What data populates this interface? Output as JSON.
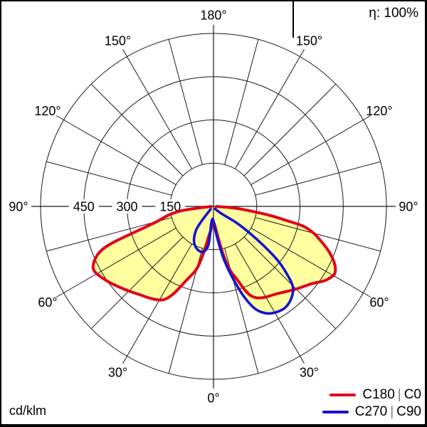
{
  "header": {
    "efficiency_text": "η: 100%",
    "unit_text": "cd/klm"
  },
  "legend": {
    "separator": "|",
    "entries": [
      {
        "plane_a": "C180",
        "plane_b": "C0",
        "color": "#e2001a"
      },
      {
        "plane_a": "C270",
        "plane_b": "C90",
        "color": "#1414cd"
      }
    ]
  },
  "colors": {
    "curve_c0_c180": "#e2001a",
    "curve_c90_c270": "#1414cd",
    "curve_fill": "#ffffa0",
    "grid": "#1a1a1a",
    "background": "#ffffff",
    "frame": "#000000",
    "legend_separator": "#7d7d7d"
  },
  "chart_data": {
    "type": "polar",
    "subtype": "luminous-intensity-distribution",
    "unit": "cd/klm",
    "efficiency": "100%",
    "orientation": "0 deg at bottom, 180 deg at top",
    "rmax": 600,
    "ring_values": [
      150,
      300,
      450,
      600
    ],
    "ring_axis_labels": [
      "150",
      "300",
      "450"
    ],
    "angle_grid_step_deg": 15,
    "angle_labels": [
      {
        "deg": 180,
        "text": "180°"
      },
      {
        "deg": 150,
        "text": "150°"
      },
      {
        "deg": -150,
        "text": "150°"
      },
      {
        "deg": 120,
        "text": "120°"
      },
      {
        "deg": -120,
        "text": "120°"
      },
      {
        "deg": 90,
        "text": "90°"
      },
      {
        "deg": -90,
        "text": "90°"
      },
      {
        "deg": 60,
        "text": "60°"
      },
      {
        "deg": -60,
        "text": "60°"
      },
      {
        "deg": 30,
        "text": "30°"
      },
      {
        "deg": -30,
        "text": "30°"
      },
      {
        "deg": 0,
        "text": "0°"
      }
    ],
    "series": [
      {
        "name": "C180 | C0",
        "color": "#e2001a",
        "fill": "#ffffa0",
        "points": [
          [
            -88,
            8
          ],
          [
            -84,
            85
          ],
          [
            -81,
            140
          ],
          [
            -78,
            172
          ],
          [
            -75,
            200
          ],
          [
            -72,
            285
          ],
          [
            -70,
            390
          ],
          [
            -68,
            432
          ],
          [
            -65,
            460
          ],
          [
            -62,
            474
          ],
          [
            -58,
            462
          ],
          [
            -54,
            448
          ],
          [
            -50,
            433
          ],
          [
            -45,
            416
          ],
          [
            -40,
            399
          ],
          [
            -35,
            389
          ],
          [
            -30,
            376
          ],
          [
            -27,
            362
          ],
          [
            -24,
            328
          ],
          [
            -21,
            283
          ],
          [
            -18,
            252
          ],
          [
            -15,
            228
          ],
          [
            -13,
            190
          ],
          [
            -11,
            140
          ],
          [
            -9,
            105
          ],
          [
            -7,
            88
          ],
          [
            -4,
            62
          ],
          [
            0,
            52
          ],
          [
            4,
            66
          ],
          [
            7,
            92
          ],
          [
            9,
            120
          ],
          [
            11,
            165
          ],
          [
            13,
            205
          ],
          [
            15,
            237
          ],
          [
            18,
            267
          ],
          [
            21,
            322
          ],
          [
            24,
            347
          ],
          [
            27,
            357
          ],
          [
            30,
            364
          ],
          [
            35,
            372
          ],
          [
            40,
            387
          ],
          [
            44,
            402
          ],
          [
            48,
            417
          ],
          [
            52,
            434
          ],
          [
            56,
            464
          ],
          [
            59,
            477
          ],
          [
            61,
            483
          ],
          [
            64,
            471
          ],
          [
            67,
            447
          ],
          [
            70,
            417
          ],
          [
            73,
            382
          ],
          [
            75,
            362
          ],
          [
            77,
            332
          ],
          [
            78,
            310
          ],
          [
            79,
            258
          ],
          [
            81,
            202
          ],
          [
            83,
            133
          ],
          [
            86,
            77
          ],
          [
            89,
            10
          ]
        ]
      },
      {
        "name": "C270 | C90",
        "color": "#1414cd",
        "fill": "#ffffa0",
        "points": [
          [
            -45,
            14
          ],
          [
            -40,
            85
          ],
          [
            -33,
            125
          ],
          [
            -27,
            148
          ],
          [
            -20,
            162
          ],
          [
            -13,
            165
          ],
          [
            -9,
            151
          ],
          [
            -7,
            130
          ],
          [
            -7,
            95
          ],
          [
            -8,
            60
          ],
          [
            -5,
            40
          ],
          [
            0,
            50
          ],
          [
            3,
            70
          ],
          [
            6,
            100
          ],
          [
            8,
            128
          ],
          [
            10,
            168
          ],
          [
            12,
            205
          ],
          [
            14,
            240
          ],
          [
            16,
            278
          ],
          [
            18,
            320
          ],
          [
            20,
            355
          ],
          [
            22,
            385
          ],
          [
            25,
            408
          ],
          [
            28,
            422
          ],
          [
            32,
            430
          ],
          [
            36,
            432
          ],
          [
            41,
            417
          ],
          [
            45,
            393
          ],
          [
            47,
            355
          ],
          [
            50,
            298
          ],
          [
            52,
            227
          ],
          [
            54,
            150
          ],
          [
            55,
            95
          ],
          [
            50,
            48
          ],
          [
            42,
            22
          ],
          [
            34,
            10
          ]
        ]
      }
    ]
  }
}
